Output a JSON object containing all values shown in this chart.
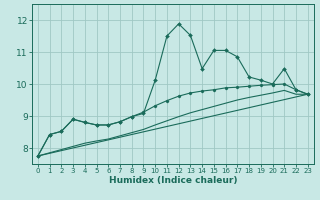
{
  "xlabel": "Humidex (Indice chaleur)",
  "xlim": [
    -0.5,
    23.5
  ],
  "ylim": [
    7.5,
    12.5
  ],
  "yticks": [
    8,
    9,
    10,
    11,
    12
  ],
  "xticks": [
    0,
    1,
    2,
    3,
    4,
    5,
    6,
    7,
    8,
    9,
    10,
    11,
    12,
    13,
    14,
    15,
    16,
    17,
    18,
    19,
    20,
    21,
    22,
    23
  ],
  "background_color": "#c8e8e5",
  "grid_color": "#a0c8c4",
  "line_color": "#1a6b5a",
  "series1_x": [
    0,
    1,
    2,
    3,
    4,
    5,
    6,
    7,
    8,
    9,
    10,
    11,
    12,
    13,
    14,
    15,
    16,
    17,
    18,
    19,
    20,
    21,
    22,
    23
  ],
  "series1_y": [
    7.75,
    8.42,
    8.52,
    8.9,
    8.8,
    8.72,
    8.72,
    8.82,
    8.98,
    9.08,
    10.12,
    11.5,
    11.88,
    11.52,
    10.48,
    11.05,
    11.05,
    10.85,
    10.22,
    10.12,
    10.0,
    10.48,
    9.82,
    9.68
  ],
  "series2_x": [
    0,
    1,
    2,
    3,
    4,
    5,
    6,
    7,
    8,
    9,
    10,
    11,
    12,
    13,
    14,
    15,
    16,
    17,
    18,
    19,
    20,
    21,
    22,
    23
  ],
  "series2_y": [
    7.75,
    8.42,
    8.52,
    8.9,
    8.8,
    8.72,
    8.72,
    8.82,
    8.98,
    9.12,
    9.32,
    9.48,
    9.62,
    9.72,
    9.78,
    9.82,
    9.88,
    9.9,
    9.93,
    9.96,
    9.98,
    10.0,
    9.82,
    9.68
  ],
  "series3_x": [
    0,
    1,
    2,
    3,
    4,
    5,
    6,
    7,
    8,
    9,
    10,
    11,
    12,
    13,
    14,
    15,
    16,
    17,
    18,
    19,
    20,
    21,
    22,
    23
  ],
  "series3_y": [
    7.75,
    7.85,
    7.95,
    8.05,
    8.15,
    8.22,
    8.28,
    8.38,
    8.48,
    8.58,
    8.72,
    8.85,
    8.98,
    9.1,
    9.2,
    9.3,
    9.4,
    9.5,
    9.58,
    9.65,
    9.72,
    9.8,
    9.68,
    9.68
  ],
  "series4_x": [
    0,
    23
  ],
  "series4_y": [
    7.75,
    9.68
  ]
}
